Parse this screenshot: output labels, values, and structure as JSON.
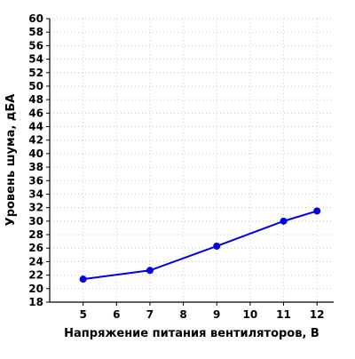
{
  "chart_data": {
    "type": "line",
    "title": "",
    "xlabel": "Напряжение питания вентиляторов, В",
    "ylabel": "Уровень шума, дБА",
    "x_ticks": [
      5,
      6,
      7,
      8,
      9,
      10,
      11,
      12
    ],
    "y_ticks": [
      18,
      20,
      22,
      24,
      26,
      28,
      30,
      32,
      34,
      36,
      38,
      40,
      42,
      44,
      46,
      48,
      50,
      52,
      54,
      56,
      58,
      60
    ],
    "xlim": [
      4,
      12.5
    ],
    "ylim": [
      18,
      60
    ],
    "grid": true,
    "legend": "none",
    "colors": {
      "series": "#0000e6",
      "grid": "#c8c8c8",
      "axis": "#000000"
    },
    "series": [
      {
        "x": [
          5,
          7,
          9,
          11,
          12
        ],
        "y": [
          21.4,
          22.7,
          26.3,
          30.0,
          31.5
        ]
      }
    ]
  }
}
